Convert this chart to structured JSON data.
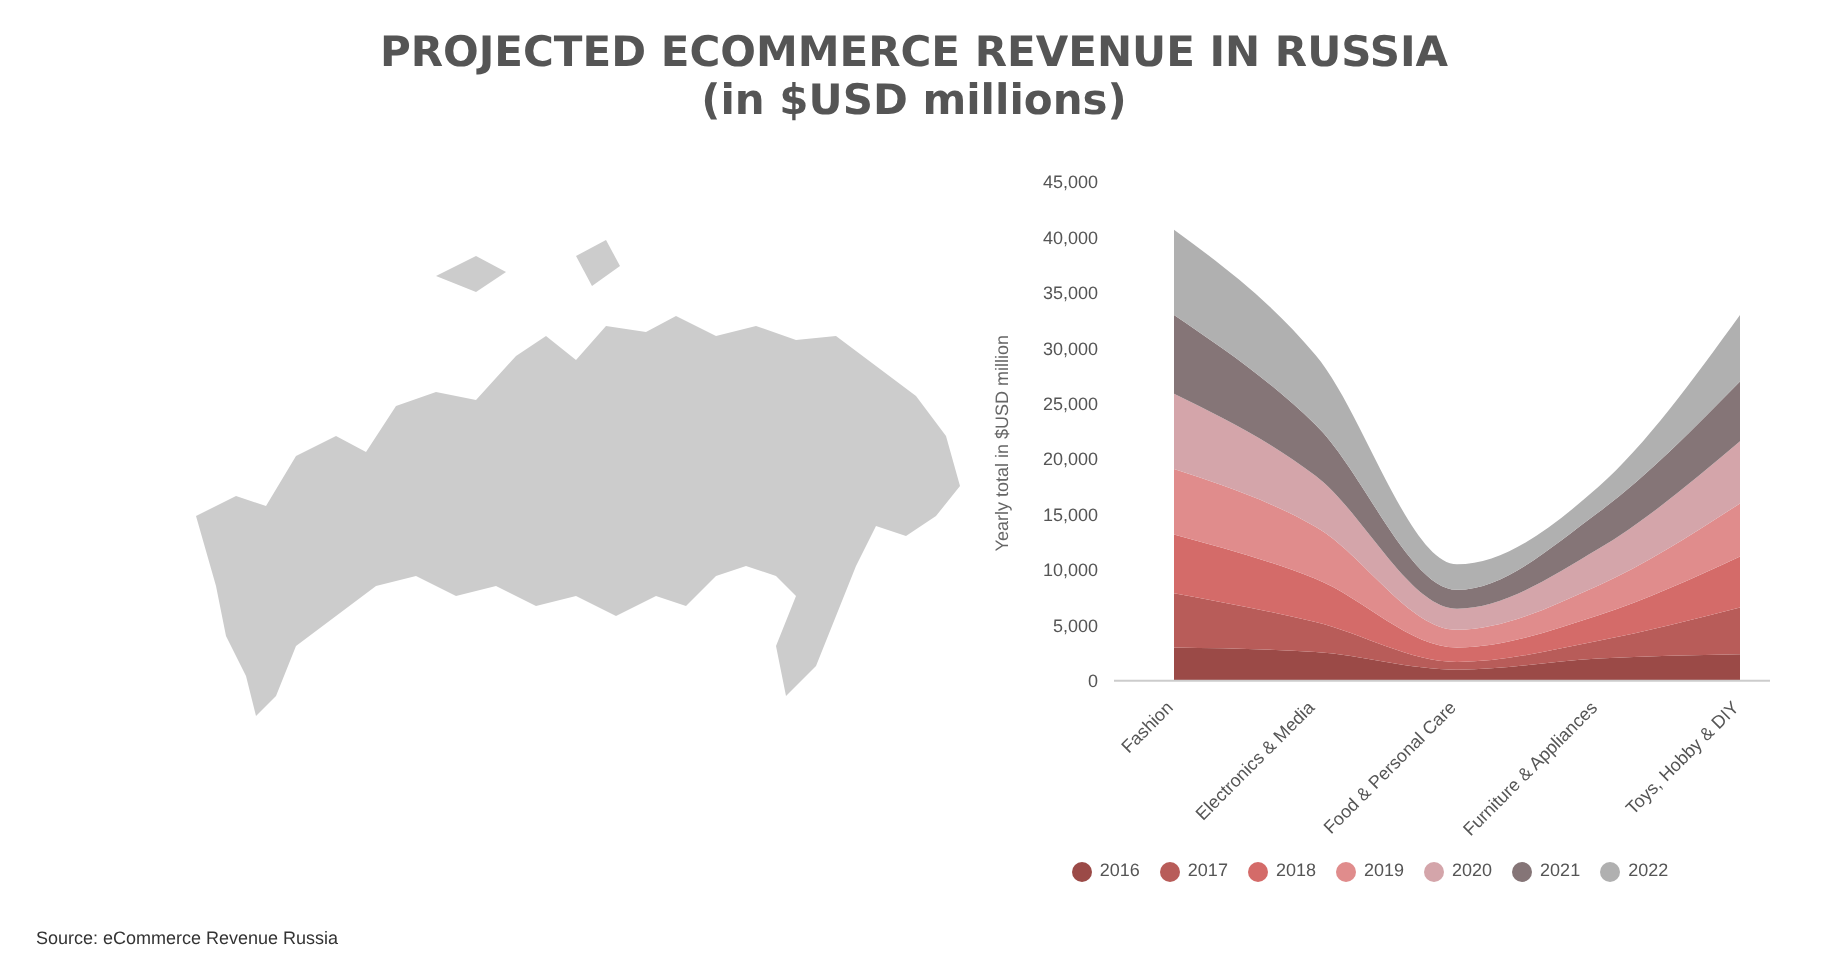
{
  "chart_data": {
    "type": "area",
    "title": "PROJECTED ECOMMERCE REVENUE IN RUSSIA",
    "subtitle": "(in $USD millions)",
    "ylabel": "Yearly total in $USD million",
    "annotations": [
      "Source: eCommerce Revenue Russia"
    ],
    "categories": [
      "Fashion",
      "Electronics & Media",
      "Food & Personal Care",
      "Furniture & Appliances",
      "Toys, Hobby & DIY"
    ],
    "stacked": true,
    "legend": "bottom",
    "ylim": [
      0,
      45000
    ],
    "yticks": [
      0,
      {
        "value": 5000,
        "label": "5,000"
      },
      {
        "value": 10000,
        "label": "10,000"
      },
      {
        "value": 15000,
        "label": "15,000"
      },
      {
        "value": 20000,
        "label": "20,000"
      },
      {
        "value": 25000,
        "label": "25,000"
      },
      {
        "value": 30000,
        "label": "30,000"
      },
      {
        "value": 35000,
        "label": "35,000"
      },
      {
        "value": 40000,
        "label": "40,000"
      },
      {
        "value": 45000,
        "label": "45,000"
      }
    ],
    "series": [
      {
        "name": "2016",
        "color": "#9b4a47",
        "values": [
          3000,
          2600,
          1000,
          2000,
          2400
        ]
      },
      {
        "name": "2017",
        "color": "#b85c59",
        "values": [
          4900,
          2700,
          700,
          1600,
          4200
        ]
      },
      {
        "name": "2018",
        "color": "#d46b69",
        "values": [
          5300,
          3900,
          1300,
          2300,
          4600
        ]
      },
      {
        "name": "2019",
        "color": "#e08c8c",
        "values": [
          5900,
          4700,
          1600,
          2700,
          4800
        ]
      },
      {
        "name": "2020",
        "color": "#d4a5aa",
        "values": [
          6800,
          4600,
          1900,
          3300,
          5600
        ]
      },
      {
        "name": "2021",
        "color": "#857577",
        "values": [
          7100,
          4600,
          1700,
          3300,
          5400
        ]
      },
      {
        "name": "2022",
        "color": "#b0b0b0",
        "values": [
          7700,
          6300,
          2300,
          2300,
          6000
        ]
      }
    ]
  }
}
